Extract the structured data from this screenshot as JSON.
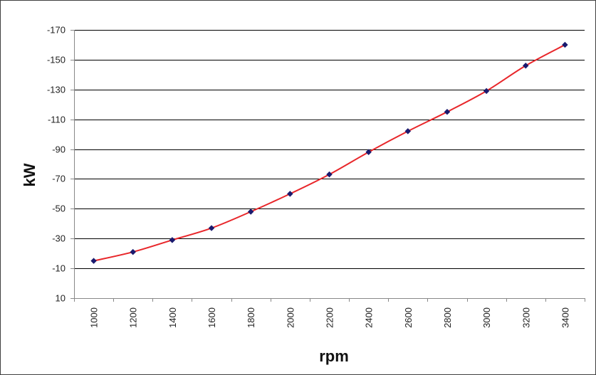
{
  "chart_data": {
    "type": "line",
    "title": "",
    "xlabel": "rpm",
    "ylabel": "kW",
    "x": [
      1000,
      1200,
      1400,
      1600,
      1800,
      2000,
      2200,
      2400,
      2600,
      2800,
      3000,
      3200,
      3400
    ],
    "series": [
      {
        "values": [
          -15,
          -21,
          -29,
          -37,
          -48,
          -60,
          -73,
          -88,
          -102,
          -115,
          -129,
          -146,
          -160
        ],
        "color": "#e8262a",
        "marker_color": "#1a1a6e"
      }
    ],
    "y_ticks": [
      "-170",
      "-150",
      "-130",
      "-110",
      "-90",
      "-70",
      "-50",
      "-30",
      "-10",
      "10"
    ],
    "y_tick_values": [
      -170,
      -150,
      -130,
      -110,
      -90,
      -70,
      -50,
      -30,
      -10,
      10
    ],
    "x_ticks": [
      "1000",
      "1200",
      "1400",
      "1600",
      "1800",
      "2000",
      "2200",
      "2400",
      "2600",
      "2800",
      "3000",
      "3200",
      "3400"
    ],
    "ylim": [
      -170,
      10
    ],
    "y_inverted": true,
    "grid": "horizontal",
    "legend": "none",
    "colors": {
      "grid": "#000000",
      "axis": "#888888",
      "plot_background": "#ffffff"
    }
  }
}
